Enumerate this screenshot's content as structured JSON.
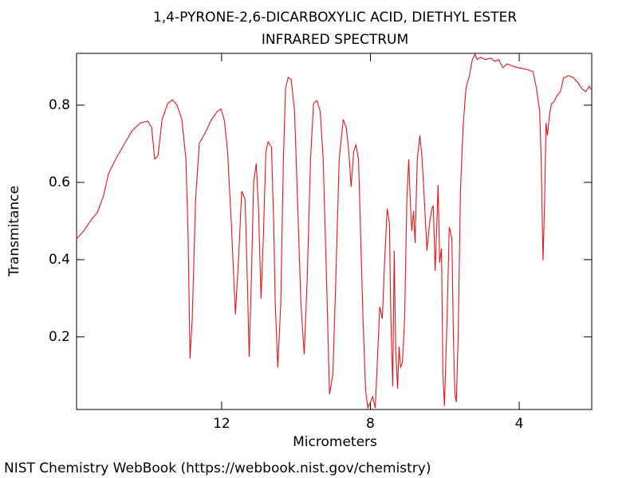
{
  "chart_data": {
    "type": "line",
    "title": "1,4-PYRONE-2,6-DICARBOXYLIC ACID, DIETHYL ESTER",
    "subtitle": "INFRARED SPECTRUM",
    "x_label": "Micrometers",
    "y_label": "Transmitance",
    "source": "NIST Chemistry WebBook (https://webbook.nist.gov/chemistry)",
    "color": "#e8141a",
    "xlim": [
      15.9,
      2.05
    ],
    "ylim": [
      0.012,
      0.934
    ],
    "xticks": [
      12,
      8,
      4
    ],
    "yticks": [
      0.2,
      0.4,
      0.6,
      0.8
    ],
    "x": [
      15.9,
      15.71,
      15.49,
      15.34,
      15.17,
      15.04,
      14.85,
      14.63,
      14.42,
      14.2,
      13.99,
      13.88,
      13.8,
      13.71,
      13.6,
      13.45,
      13.32,
      13.2,
      13.07,
      12.96,
      12.9,
      12.85,
      12.79,
      12.7,
      12.6,
      12.42,
      12.27,
      12.12,
      12.02,
      11.93,
      11.84,
      11.74,
      11.63,
      11.54,
      11.46,
      11.37,
      11.31,
      11.26,
      11.2,
      11.14,
      11.07,
      11.01,
      10.94,
      10.88,
      10.81,
      10.75,
      10.66,
      10.6,
      10.56,
      10.49,
      10.41,
      10.34,
      10.28,
      10.21,
      10.13,
      10.04,
      9.96,
      9.87,
      9.78,
      9.7,
      9.61,
      9.53,
      9.44,
      9.35,
      9.27,
      9.18,
      9.1,
      9.01,
      8.93,
      8.84,
      8.73,
      8.65,
      8.58,
      8.52,
      8.45,
      8.39,
      8.32,
      8.26,
      8.2,
      8.13,
      8.07,
      8.0,
      7.94,
      7.87,
      7.81,
      7.75,
      7.68,
      7.62,
      7.55,
      7.49,
      7.45,
      7.4,
      7.36,
      7.32,
      7.27,
      7.23,
      7.19,
      7.14,
      7.08,
      7.02,
      6.97,
      6.93,
      6.89,
      6.84,
      6.8,
      6.74,
      6.67,
      6.61,
      6.54,
      6.48,
      6.41,
      6.35,
      6.31,
      6.26,
      6.22,
      6.18,
      6.14,
      6.09,
      6.05,
      6.01,
      5.94,
      5.88,
      5.81,
      5.77,
      5.73,
      5.69,
      5.64,
      5.58,
      5.51,
      5.43,
      5.34,
      5.26,
      5.19,
      5.13,
      5.04,
      4.91,
      4.76,
      4.66,
      4.55,
      4.44,
      4.33,
      4.23,
      4.05,
      3.9,
      3.75,
      3.63,
      3.54,
      3.45,
      3.41,
      3.36,
      3.32,
      3.28,
      3.24,
      3.19,
      3.13,
      3.07,
      2.98,
      2.89,
      2.81,
      2.68,
      2.55,
      2.42,
      2.3,
      2.21,
      2.12,
      2.05
    ],
    "values": [
      0.454,
      0.474,
      0.505,
      0.522,
      0.567,
      0.623,
      0.66,
      0.697,
      0.732,
      0.753,
      0.759,
      0.742,
      0.66,
      0.67,
      0.763,
      0.804,
      0.814,
      0.8,
      0.763,
      0.66,
      0.454,
      0.144,
      0.247,
      0.557,
      0.701,
      0.732,
      0.763,
      0.784,
      0.79,
      0.763,
      0.68,
      0.495,
      0.258,
      0.412,
      0.577,
      0.557,
      0.35,
      0.148,
      0.35,
      0.598,
      0.649,
      0.536,
      0.299,
      0.454,
      0.68,
      0.705,
      0.691,
      0.495,
      0.289,
      0.12,
      0.289,
      0.66,
      0.845,
      0.872,
      0.866,
      0.784,
      0.557,
      0.289,
      0.155,
      0.35,
      0.66,
      0.804,
      0.812,
      0.784,
      0.66,
      0.35,
      0.051,
      0.103,
      0.35,
      0.66,
      0.763,
      0.742,
      0.68,
      0.588,
      0.68,
      0.697,
      0.66,
      0.454,
      0.247,
      0.062,
      0.016,
      0.031,
      0.045,
      0.016,
      0.144,
      0.278,
      0.247,
      0.392,
      0.532,
      0.495,
      0.247,
      0.072,
      0.423,
      0.165,
      0.066,
      0.175,
      0.12,
      0.134,
      0.247,
      0.557,
      0.66,
      0.557,
      0.474,
      0.526,
      0.443,
      0.66,
      0.722,
      0.66,
      0.536,
      0.423,
      0.495,
      0.532,
      0.54,
      0.371,
      0.474,
      0.594,
      0.392,
      0.429,
      0.103,
      0.021,
      0.247,
      0.485,
      0.454,
      0.206,
      0.051,
      0.031,
      0.206,
      0.577,
      0.742,
      0.845,
      0.876,
      0.918,
      0.932,
      0.918,
      0.924,
      0.918,
      0.922,
      0.913,
      0.918,
      0.897,
      0.907,
      0.903,
      0.897,
      0.895,
      0.891,
      0.887,
      0.845,
      0.784,
      0.66,
      0.398,
      0.536,
      0.753,
      0.722,
      0.773,
      0.804,
      0.808,
      0.825,
      0.835,
      0.87,
      0.876,
      0.872,
      0.858,
      0.841,
      0.835,
      0.849,
      0.839
    ]
  }
}
